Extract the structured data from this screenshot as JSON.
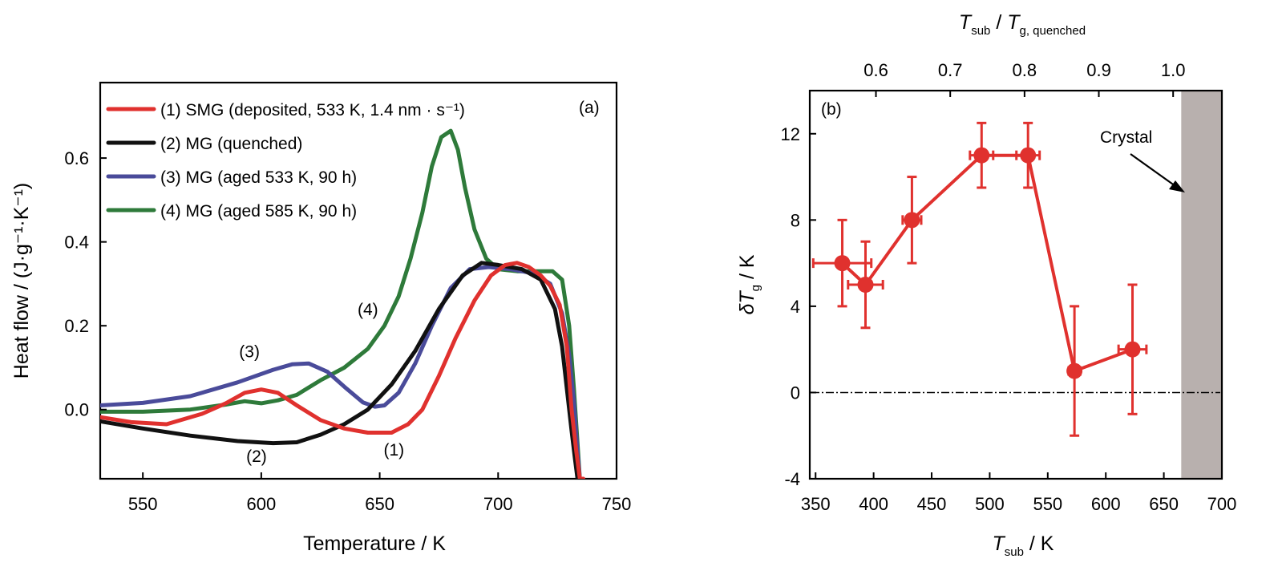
{
  "chart_data": [
    {
      "type": "line",
      "panel_label": "(a)",
      "xlabel": "Temperature / K",
      "ylabel": "Heat flow / (J·g⁻¹·K⁻¹)",
      "xlim": [
        532,
        750
      ],
      "ylim": [
        -0.165,
        0.78
      ],
      "xticks": [
        550,
        600,
        650,
        700,
        750
      ],
      "xtick_labels": [
        "550",
        "600",
        "650",
        "700",
        "750"
      ],
      "yticks": [
        0.0,
        0.2,
        0.4,
        0.6
      ],
      "ytick_labels": [
        "0.0",
        "0.2",
        "0.4",
        "0.6"
      ],
      "legend_position": "top-left",
      "series": [
        {
          "name": "(1) SMG (deposited, 533 K, 1.4 nm · s⁻¹)",
          "color": "#e0312e",
          "x": [
            532,
            545,
            560,
            575,
            585,
            593,
            600,
            607,
            615,
            625,
            635,
            645,
            655,
            662,
            668,
            675,
            682,
            690,
            697,
            703,
            708,
            713,
            718,
            722,
            726,
            729,
            731,
            733,
            734.5,
            735.5,
            736
          ],
          "y": [
            -0.018,
            -0.03,
            -0.035,
            -0.01,
            0.015,
            0.04,
            0.048,
            0.04,
            0.01,
            -0.025,
            -0.045,
            -0.055,
            -0.055,
            -0.035,
            0.0,
            0.08,
            0.17,
            0.26,
            0.32,
            0.345,
            0.35,
            0.34,
            0.32,
            0.295,
            0.25,
            0.15,
            0.0,
            -0.1,
            -0.165,
            -0.165,
            -0.165
          ]
        },
        {
          "name": "(2) MG (quenched)",
          "color": "#111111",
          "x": [
            532,
            550,
            570,
            590,
            605,
            615,
            625,
            635,
            645,
            655,
            665,
            675,
            685,
            693,
            700,
            710,
            718,
            724,
            727,
            729,
            731,
            732.5,
            733.5,
            734
          ],
          "y": [
            -0.028,
            -0.045,
            -0.062,
            -0.075,
            -0.08,
            -0.078,
            -0.06,
            -0.035,
            0.0,
            0.06,
            0.14,
            0.24,
            0.32,
            0.35,
            0.345,
            0.335,
            0.31,
            0.24,
            0.15,
            0.05,
            -0.05,
            -0.12,
            -0.165,
            -0.165
          ]
        },
        {
          "name": "(3) MG (aged 533 K, 90 h)",
          "color": "#4a4b9a",
          "x": [
            532,
            550,
            570,
            590,
            605,
            613,
            620,
            628,
            636,
            643,
            648,
            652,
            658,
            665,
            672,
            680,
            688,
            696,
            705,
            715,
            722,
            727,
            730,
            732,
            733.5,
            734.5,
            735
          ],
          "y": [
            0.01,
            0.016,
            0.032,
            0.065,
            0.095,
            0.108,
            0.11,
            0.09,
            0.05,
            0.017,
            0.007,
            0.01,
            0.04,
            0.11,
            0.2,
            0.29,
            0.335,
            0.34,
            0.335,
            0.325,
            0.3,
            0.23,
            0.13,
            0.02,
            -0.1,
            -0.165,
            -0.165
          ]
        },
        {
          "name": "(4) MG (aged 585 K, 90 h)",
          "color": "#2e7a3a",
          "x": [
            532,
            550,
            570,
            585,
            593,
            600,
            607,
            615,
            625,
            635,
            645,
            652,
            658,
            663,
            668,
            672,
            676,
            680,
            683,
            686,
            690,
            695,
            700,
            708,
            716,
            723,
            727,
            730,
            732,
            733.5,
            734.5,
            735
          ],
          "y": [
            -0.005,
            -0.005,
            0.0,
            0.012,
            0.02,
            0.015,
            0.022,
            0.035,
            0.07,
            0.1,
            0.145,
            0.2,
            0.27,
            0.36,
            0.47,
            0.58,
            0.65,
            0.665,
            0.62,
            0.53,
            0.43,
            0.36,
            0.335,
            0.33,
            0.33,
            0.33,
            0.31,
            0.2,
            0.05,
            -0.08,
            -0.165,
            -0.165
          ]
        }
      ],
      "annotations": [
        {
          "text": "(1)",
          "x": 656,
          "y": -0.11
        },
        {
          "text": "(2)",
          "x": 598,
          "y": -0.125
        },
        {
          "text": "(3)",
          "x": 595,
          "y": 0.125
        },
        {
          "text": "(4)",
          "x": 645,
          "y": 0.225
        }
      ]
    },
    {
      "type": "scatter",
      "panel_label": "(b)",
      "xlabel": "T_sub / K",
      "ylabel": "δT_g / K",
      "top_xlabel": "T_sub / T_g, quenched",
      "xlim": [
        345,
        700
      ],
      "ylim": [
        -4,
        14
      ],
      "xticks": [
        350,
        400,
        450,
        500,
        550,
        600,
        650,
        700
      ],
      "xtick_labels": [
        "350",
        "400",
        "450",
        "500",
        "550",
        "600",
        "650",
        "700"
      ],
      "yticks": [
        -4,
        0,
        4,
        8,
        12
      ],
      "ytick_labels": [
        "-4",
        "0",
        "4",
        "8",
        "12"
      ],
      "top_ticks": [
        0.6,
        0.7,
        0.8,
        0.9,
        1.0
      ],
      "top_tick_labels": [
        "0.6",
        "0.7",
        "0.8",
        "0.9",
        "1.0"
      ],
      "top_tick_x_sub": [
        402,
        466,
        530,
        594,
        658
      ],
      "series": [
        {
          "name": "",
          "color": "#e0312e",
          "x": [
            373,
            393,
            433,
            493,
            533,
            573,
            623
          ],
          "y": [
            6,
            5,
            8,
            11,
            11,
            1,
            2
          ],
          "xerr": [
            25,
            15,
            8,
            10,
            10,
            5,
            12
          ],
          "yerr": [
            2,
            2,
            2,
            1.5,
            1.5,
            3,
            3
          ]
        }
      ],
      "zero_line": 0,
      "crystal_region": [
        665,
        700
      ],
      "crystal_label": "Crystal"
    }
  ],
  "crystal_annotation": "Crystal"
}
